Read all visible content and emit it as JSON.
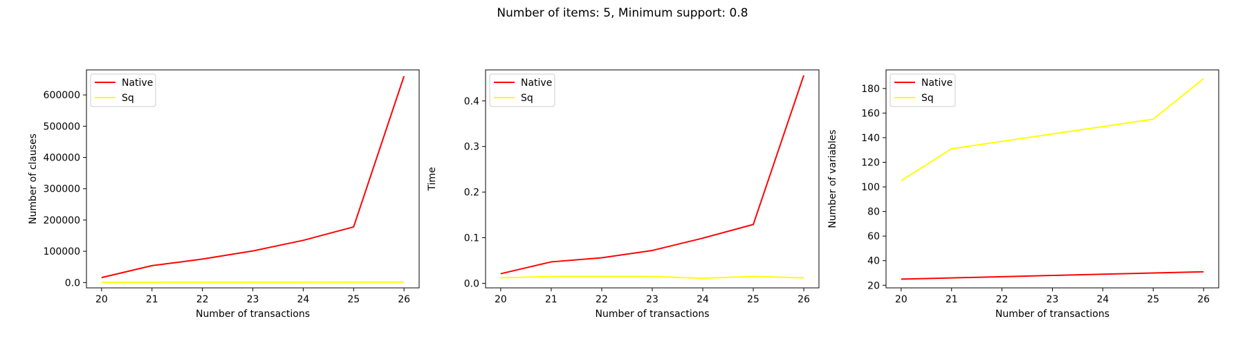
{
  "title": "Number of items: 5, Minimum support: 0.8",
  "colors": {
    "Native": "#ff0000",
    "Sq": "#ffff00"
  },
  "chart_data": [
    {
      "type": "line",
      "xlabel": "Number of transactions",
      "ylabel": "Number of clauses",
      "x": [
        20,
        21,
        22,
        23,
        24,
        25,
        26
      ],
      "xticks": [
        20,
        21,
        22,
        23,
        24,
        25,
        26
      ],
      "ylim": [
        -17000,
        680000
      ],
      "yticks": [
        0,
        100000,
        200000,
        300000,
        400000,
        500000,
        600000
      ],
      "legend": "top-left",
      "grid": false,
      "series": [
        {
          "name": "Native",
          "color": "#ff0000",
          "values": [
            16000,
            54000,
            75000,
            101000,
            135000,
            178000,
            660000
          ]
        },
        {
          "name": "Sq",
          "color": "#ffff00",
          "values": [
            1000,
            1100,
            1200,
            1200,
            1300,
            1400,
            1500
          ]
        }
      ]
    },
    {
      "type": "line",
      "xlabel": "Number of transactions",
      "ylabel": "Time",
      "x": [
        20,
        21,
        22,
        23,
        24,
        25,
        26
      ],
      "xticks": [
        20,
        21,
        22,
        23,
        24,
        25,
        26
      ],
      "ylim": [
        -0.01,
        0.468
      ],
      "yticks": [
        0.0,
        0.1,
        0.2,
        0.3,
        0.4
      ],
      "legend": "top-left",
      "grid": false,
      "series": [
        {
          "name": "Native",
          "color": "#ff0000",
          "values": [
            0.021,
            0.047,
            0.056,
            0.072,
            0.099,
            0.129,
            0.456
          ]
        },
        {
          "name": "Sq",
          "color": "#ffff00",
          "values": [
            0.012,
            0.015,
            0.015,
            0.015,
            0.011,
            0.015,
            0.012
          ]
        }
      ]
    },
    {
      "type": "line",
      "xlabel": "Number of transactions",
      "ylabel": "Number of variables",
      "x": [
        20,
        21,
        22,
        23,
        24,
        25,
        26
      ],
      "xticks": [
        20,
        21,
        22,
        23,
        24,
        25,
        26
      ],
      "ylim": [
        17.9,
        195.1
      ],
      "yticks": [
        20,
        40,
        60,
        80,
        100,
        120,
        140,
        160,
        180
      ],
      "legend": "top-left",
      "grid": false,
      "series": [
        {
          "name": "Native",
          "color": "#ff0000",
          "values": [
            25,
            26,
            27,
            28,
            29,
            30,
            31
          ]
        },
        {
          "name": "Sq",
          "color": "#ffff00",
          "values": [
            105,
            131,
            137,
            143,
            149,
            155,
            188
          ]
        }
      ]
    }
  ]
}
